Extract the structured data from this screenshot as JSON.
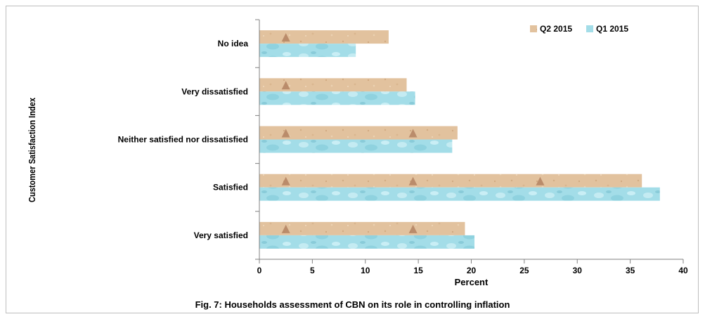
{
  "chart_data": {
    "type": "bar",
    "orientation": "horizontal",
    "categories": [
      "No idea",
      "Very dissatisfied",
      "Neither satisfied nor dissatisfied",
      "Satisfied",
      "Very satisfied"
    ],
    "series": [
      {
        "name": "Q2 2015",
        "values": [
          12.2,
          13.9,
          18.7,
          36.1,
          19.4
        ]
      },
      {
        "name": "Q1 2015",
        "values": [
          9.1,
          14.7,
          18.2,
          37.8,
          20.3
        ]
      }
    ],
    "xlabel": "Percent",
    "ylabel": "Customer Satisfaction Index",
    "xlim": [
      0,
      40
    ],
    "xticks": [
      0,
      5,
      10,
      15,
      20,
      25,
      30,
      35,
      40
    ],
    "legend": "top-right",
    "grid": false,
    "colors": {
      "Q2 2015": "#e2c29e",
      "Q1 2015": "#a3dde8"
    }
  },
  "caption": "Fig. 7:  Households  assessment  of  CBN  on its role in  controlling inflation"
}
